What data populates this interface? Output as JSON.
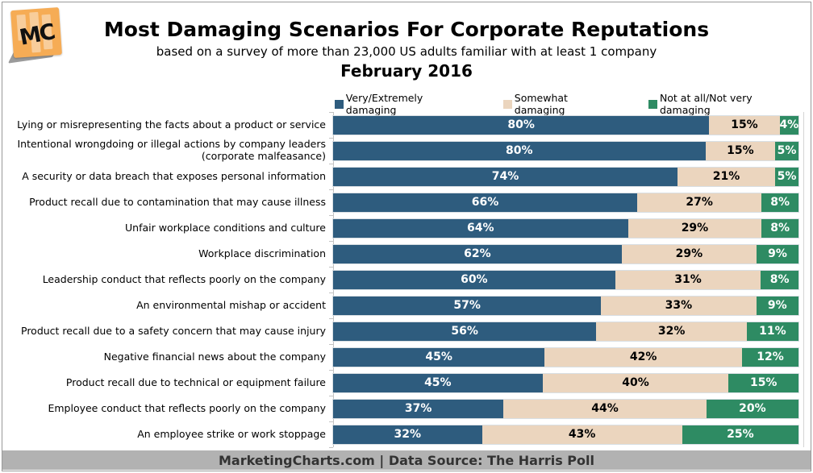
{
  "logo": {
    "text": "MC"
  },
  "header": {
    "title": "Most Damaging Scenarios For Corporate Reputations",
    "subtitle": "based on a survey of more than 23,000 US adults familiar with at least 1 company",
    "date": "February 2016"
  },
  "colors": {
    "very_damaging": "#2E5C7E",
    "somewhat_damaging": "#EBD5BE",
    "not_damaging": "#2E8B63",
    "footer_bg": "#B2B2B2",
    "logo_orange": "#F6AC55"
  },
  "chart_data": {
    "type": "bar",
    "orientation": "horizontal-stacked",
    "value_suffix": "%",
    "xlim": [
      0,
      100
    ],
    "legend_position": "top",
    "grid": false,
    "categories": [
      "Lying or misrepresenting the facts about a product or service",
      "Intentional wrongdoing or illegal actions by company leaders (corporate malfeasance)",
      "A security or data breach that exposes personal information",
      "Product recall due to contamination that may cause illness",
      "Unfair workplace conditions and culture",
      "Workplace discrimination",
      "Leadership conduct that reflects poorly on the company",
      "An environmental mishap or accident",
      "Product recall due to a safety concern that may cause injury",
      "Negative financial news about the company",
      "Product recall due to technical or equipment failure",
      "Employee conduct that reflects poorly on the company",
      "An employee strike or work stoppage"
    ],
    "series": [
      {
        "name": "Very/Extremely damaging",
        "color": "#2E5C7E",
        "text_color": "#FFFFFF",
        "values": [
          80,
          80,
          74,
          66,
          64,
          62,
          60,
          57,
          56,
          45,
          45,
          37,
          32
        ]
      },
      {
        "name": "Somewhat damaging",
        "color": "#EBD5BE",
        "text_color": "#000000",
        "values": [
          15,
          15,
          21,
          27,
          29,
          29,
          31,
          33,
          32,
          42,
          40,
          44,
          43
        ]
      },
      {
        "name": "Not at all/Not very damaging",
        "color": "#2E8B63",
        "text_color": "#FFFFFF",
        "values": [
          4,
          5,
          5,
          8,
          8,
          9,
          8,
          9,
          11,
          12,
          15,
          20,
          25
        ]
      }
    ]
  },
  "footer": {
    "text": "MarketingCharts.com | Data Source: The Harris Poll"
  }
}
